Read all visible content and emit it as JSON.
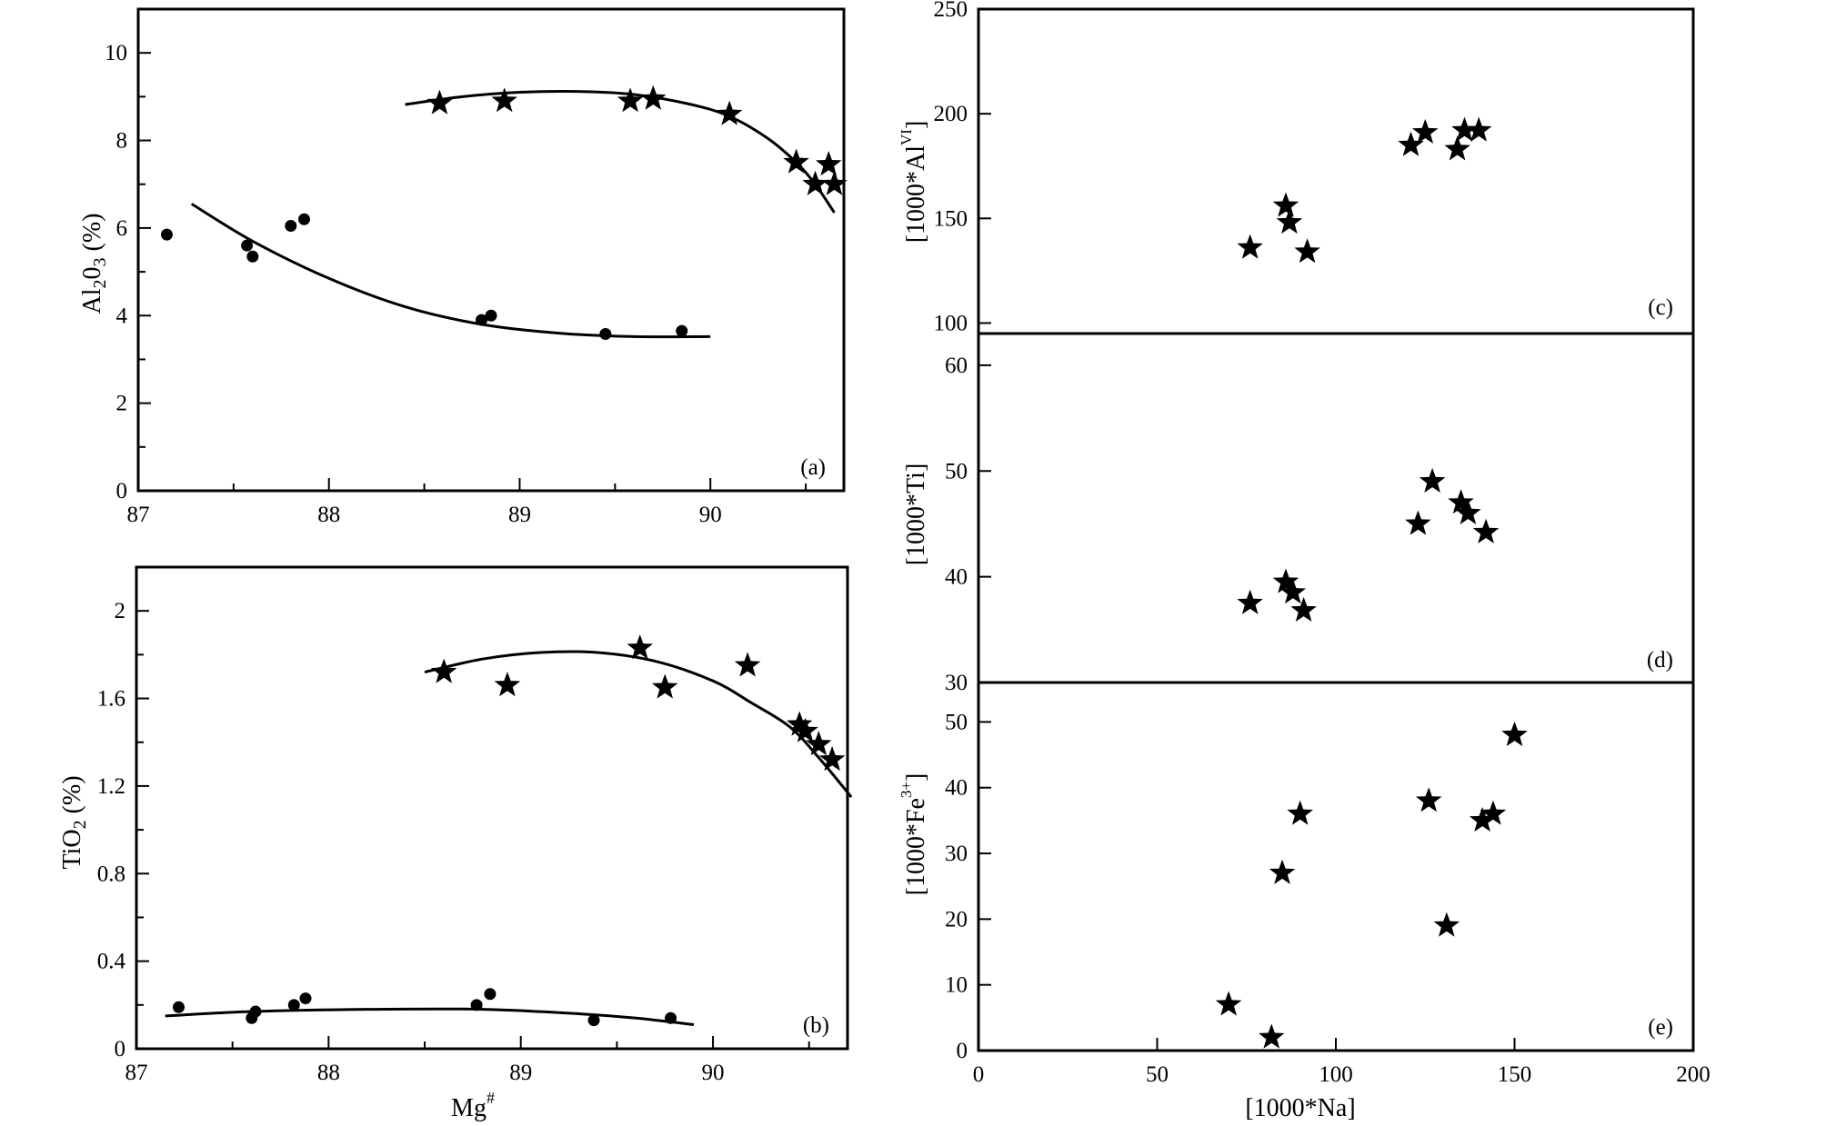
{
  "figure": {
    "shared_xlabel_left": "Mg",
    "shared_xlabel_left_sup": "#",
    "shared_xlabel_right": "[1000*Na]"
  },
  "chart_data": [
    {
      "panel": "a",
      "panel_label": "(a)",
      "type": "scatter",
      "ylabel_parts": [
        "Al",
        "2",
        "0",
        "3",
        " (%)"
      ],
      "xlim": [
        87,
        90.7
      ],
      "ylim": [
        0,
        11
      ],
      "xticks": [
        87,
        88,
        89,
        90
      ],
      "xtick_labels": [
        "87",
        "88",
        "89",
        "90"
      ],
      "xminor": [
        87.5,
        88.5,
        89.5,
        90.5
      ],
      "yticks": [
        0,
        2,
        4,
        6,
        8,
        10
      ],
      "ytick_labels": [
        "0",
        "2",
        "4",
        "6",
        "8",
        "10"
      ],
      "yminor": [
        1,
        3,
        5,
        7,
        9
      ],
      "series": [
        {
          "name": "stars",
          "marker": "star",
          "points": [
            [
              88.58,
              8.85
            ],
            [
              88.92,
              8.9
            ],
            [
              89.58,
              8.9
            ],
            [
              89.7,
              8.95
            ],
            [
              90.1,
              8.6
            ],
            [
              90.45,
              7.5
            ],
            [
              90.55,
              7.0
            ],
            [
              90.62,
              7.45
            ],
            [
              90.65,
              7.0
            ]
          ]
        },
        {
          "name": "dots",
          "marker": "circle",
          "points": [
            [
              87.15,
              5.85
            ],
            [
              87.57,
              5.6
            ],
            [
              87.6,
              5.35
            ],
            [
              87.8,
              6.05
            ],
            [
              87.87,
              6.2
            ],
            [
              88.8,
              3.9
            ],
            [
              88.85,
              4.0
            ],
            [
              89.45,
              3.58
            ],
            [
              89.85,
              3.65
            ]
          ]
        }
      ],
      "curves": [
        {
          "name": "upper-fit",
          "points": [
            [
              88.4,
              8.82
            ],
            [
              88.7,
              9.0
            ],
            [
              89.0,
              9.1
            ],
            [
              89.3,
              9.12
            ],
            [
              89.6,
              9.05
            ],
            [
              89.9,
              8.82
            ],
            [
              90.1,
              8.55
            ],
            [
              90.3,
              8.05
            ],
            [
              90.45,
              7.5
            ],
            [
              90.55,
              7.0
            ],
            [
              90.65,
              6.35
            ]
          ]
        },
        {
          "name": "lower-fit",
          "points": [
            [
              87.28,
              6.55
            ],
            [
              87.6,
              5.7
            ],
            [
              88.0,
              4.85
            ],
            [
              88.4,
              4.2
            ],
            [
              88.8,
              3.8
            ],
            [
              89.2,
              3.6
            ],
            [
              89.6,
              3.52
            ],
            [
              90.0,
              3.52
            ]
          ]
        }
      ]
    },
    {
      "panel": "b",
      "panel_label": "(b)",
      "type": "scatter",
      "ylabel_parts": [
        "TiO",
        "2",
        " (%)"
      ],
      "xlabel": "Mg#",
      "xlim": [
        87,
        90.7
      ],
      "ylim": [
        0,
        2.2
      ],
      "xticks": [
        87,
        88,
        89,
        90
      ],
      "xtick_labels": [
        "87",
        "88",
        "89",
        "90"
      ],
      "xminor": [
        87.5,
        88.5,
        89.5,
        90.5
      ],
      "yticks": [
        0,
        0.4,
        0.8,
        1.2,
        1.6,
        2.0
      ],
      "ytick_labels": [
        "0",
        "0.4",
        "0.8",
        "1.2",
        "1.6",
        "2"
      ],
      "yminor": [
        0.2,
        0.6,
        1.0,
        1.4,
        1.8
      ],
      "series": [
        {
          "name": "stars",
          "marker": "star",
          "points": [
            [
              88.6,
              1.72
            ],
            [
              88.93,
              1.66
            ],
            [
              89.62,
              1.83
            ],
            [
              89.75,
              1.65
            ],
            [
              90.18,
              1.75
            ],
            [
              90.45,
              1.48
            ],
            [
              90.48,
              1.45
            ],
            [
              90.55,
              1.39
            ],
            [
              90.62,
              1.32
            ]
          ]
        },
        {
          "name": "dots",
          "marker": "circle",
          "points": [
            [
              87.22,
              0.19
            ],
            [
              87.6,
              0.14
            ],
            [
              87.62,
              0.17
            ],
            [
              87.82,
              0.2
            ],
            [
              87.88,
              0.23
            ],
            [
              88.77,
              0.2
            ],
            [
              88.84,
              0.25
            ],
            [
              89.38,
              0.13
            ],
            [
              89.78,
              0.14
            ]
          ]
        }
      ],
      "curves": [
        {
          "name": "upper-fit",
          "points": [
            [
              88.5,
              1.72
            ],
            [
              88.8,
              1.78
            ],
            [
              89.1,
              1.81
            ],
            [
              89.4,
              1.81
            ],
            [
              89.7,
              1.77
            ],
            [
              90.0,
              1.68
            ],
            [
              90.2,
              1.58
            ],
            [
              90.4,
              1.47
            ],
            [
              90.55,
              1.33
            ],
            [
              90.72,
              1.15
            ]
          ]
        },
        {
          "name": "lower-fit",
          "points": [
            [
              87.15,
              0.15
            ],
            [
              87.6,
              0.17
            ],
            [
              88.2,
              0.18
            ],
            [
              88.8,
              0.18
            ],
            [
              89.3,
              0.16
            ],
            [
              89.6,
              0.14
            ],
            [
              89.9,
              0.11
            ]
          ]
        }
      ]
    },
    {
      "panel": "c",
      "panel_label": "(c)",
      "type": "scatter",
      "ylabel": "[1000*Al",
      "ylabel_sup": "VI",
      "ylabel_end": "]",
      "xlim": [
        0,
        200
      ],
      "ylim": [
        95,
        250
      ],
      "yticks": [
        100,
        150,
        200,
        250
      ],
      "ytick_labels": [
        "100",
        "150",
        "200",
        "250"
      ],
      "series": [
        {
          "name": "stars",
          "marker": "star",
          "points": [
            [
              76,
              136
            ],
            [
              86,
              156
            ],
            [
              87,
              148
            ],
            [
              92,
              134
            ],
            [
              121,
              185
            ],
            [
              125,
              191
            ],
            [
              134,
              183
            ],
            [
              136,
              192
            ],
            [
              140,
              192
            ]
          ]
        }
      ]
    },
    {
      "panel": "d",
      "panel_label": "(d)",
      "type": "scatter",
      "ylabel": "[1000*Ti]",
      "xlim": [
        0,
        200
      ],
      "ylim": [
        30,
        63
      ],
      "yticks": [
        30,
        40,
        50,
        60
      ],
      "ytick_labels": [
        "30",
        "40",
        "50",
        "60"
      ],
      "series": [
        {
          "name": "stars",
          "marker": "star",
          "points": [
            [
              76,
              37.5
            ],
            [
              86,
              39.5
            ],
            [
              88,
              38.5
            ],
            [
              91,
              36.8
            ],
            [
              123,
              45
            ],
            [
              127,
              49
            ],
            [
              135,
              47
            ],
            [
              137,
              46
            ],
            [
              142,
              44.2
            ]
          ]
        }
      ]
    },
    {
      "panel": "e",
      "panel_label": "(e)",
      "type": "scatter",
      "ylabel": "[1000*Fe",
      "ylabel_sup": "3+",
      "ylabel_end": "]",
      "xlabel": "[1000*Na]",
      "xlim": [
        0,
        200
      ],
      "ylim": [
        0,
        56
      ],
      "xticks": [
        0,
        50,
        100,
        150,
        200
      ],
      "xtick_labels": [
        "0",
        "50",
        "100",
        "150",
        "200"
      ],
      "yticks": [
        0,
        10,
        20,
        30,
        40,
        50
      ],
      "ytick_labels": [
        "0",
        "10",
        "20",
        "30",
        "40",
        "50"
      ],
      "series": [
        {
          "name": "stars",
          "marker": "star",
          "points": [
            [
              70,
              7
            ],
            [
              82,
              2
            ],
            [
              85,
              27
            ],
            [
              90,
              36
            ],
            [
              126,
              38
            ],
            [
              131,
              19
            ],
            [
              141,
              35
            ],
            [
              144,
              36
            ],
            [
              150,
              48
            ]
          ]
        }
      ]
    }
  ]
}
